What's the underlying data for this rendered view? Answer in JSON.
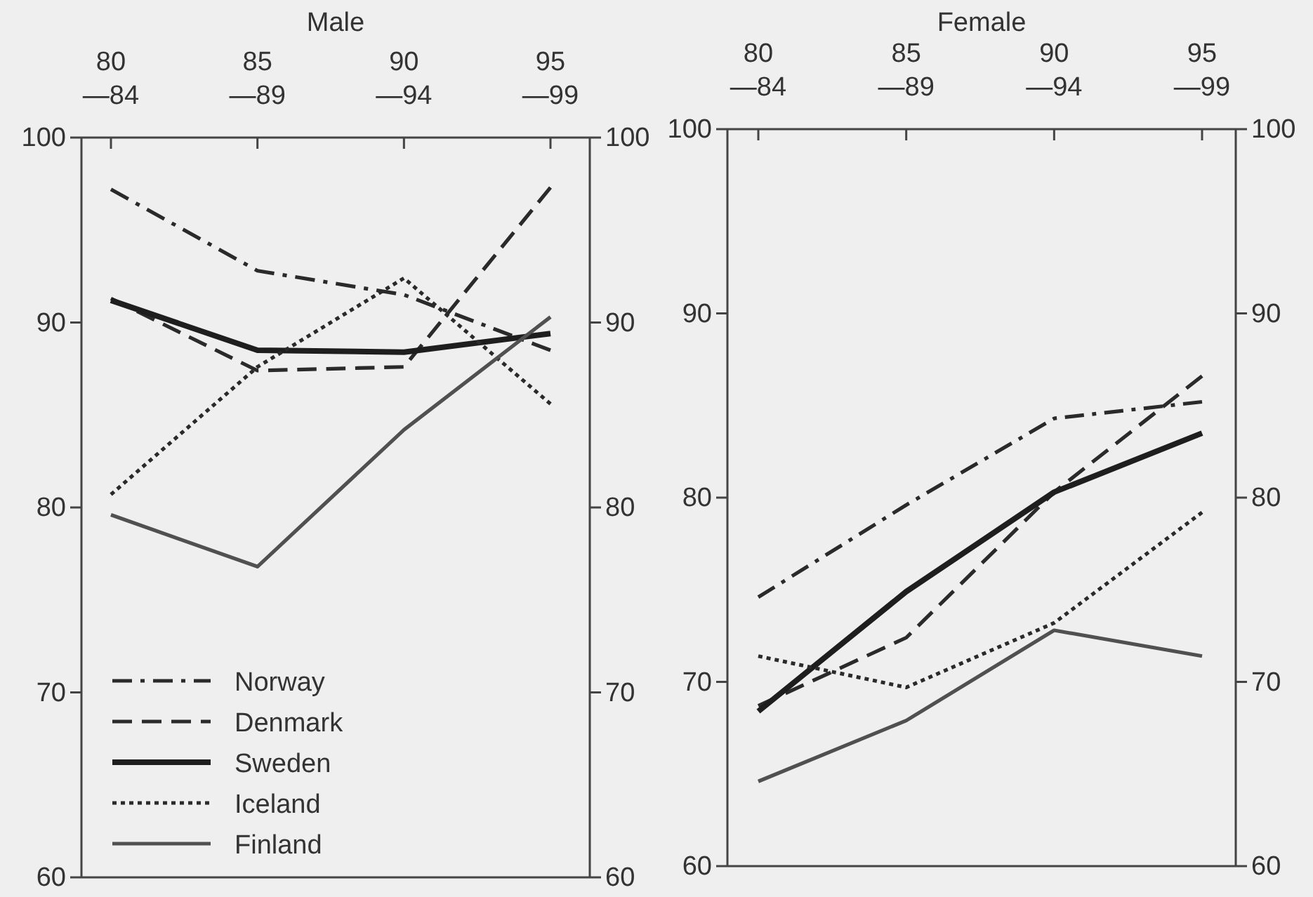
{
  "chart_data": [
    {
      "type": "line",
      "title": "Male",
      "categories": [
        "80 —84",
        "85 —89",
        "90 —94",
        "95 —99"
      ],
      "ylim": [
        60,
        100
      ],
      "yticks": [
        60,
        70,
        80,
        90,
        100
      ],
      "y2lim": [
        60,
        100
      ],
      "y2ticks": [
        60,
        70,
        80,
        90,
        100
      ],
      "legend": "bottom left",
      "series": [
        {
          "name": "Norway",
          "color": "#2a2a2a",
          "line_style": "dashdot",
          "values": [
            97.2,
            92.8,
            91.5,
            88.5
          ]
        },
        {
          "name": "Denmark",
          "color": "#2a2a2a",
          "line_style": "dashed",
          "values": [
            91.3,
            87.4,
            87.6,
            97.3
          ]
        },
        {
          "name": "Sweden",
          "color": "#1e1e1e",
          "line_style": "solid",
          "values": [
            91.2,
            88.5,
            88.4,
            89.4
          ]
        },
        {
          "name": "Iceland",
          "color": "#2a2a2a",
          "line_style": "dotted",
          "values": [
            80.7,
            87.6,
            92.4,
            85.6
          ]
        },
        {
          "name": "Finland",
          "color": "#505050",
          "line_style": "solid",
          "values": [
            79.6,
            76.8,
            84.2,
            90.3
          ]
        }
      ]
    },
    {
      "type": "line",
      "title": "Female",
      "categories": [
        "80 —84",
        "85 —89",
        "90 —94",
        "95 —99"
      ],
      "ylim": [
        60,
        100
      ],
      "yticks": [
        60,
        70,
        80,
        90,
        100
      ],
      "y2lim": [
        60,
        100
      ],
      "y2ticks": [
        60,
        70,
        80,
        90,
        100
      ],
      "series": [
        {
          "color": "#2a2a2a",
          "line_style": "dashdot",
          "values": [
            74.6,
            79.6,
            84.3,
            85.2
          ]
        },
        {
          "color": "#2a2a2a",
          "line_style": "dashed",
          "values": [
            68.7,
            72.4,
            80.3,
            86.6
          ]
        },
        {
          "color": "#1e1e1e",
          "line_style": "solid",
          "values": [
            68.4,
            74.9,
            80.3,
            83.5
          ]
        },
        {
          "color": "#2a2a2a",
          "line_style": "dotted",
          "values": [
            71.4,
            69.7,
            73.2,
            79.2
          ]
        },
        {
          "color": "#505050",
          "line_style": "solid",
          "values": [
            64.6,
            67.9,
            72.8,
            71.4
          ]
        }
      ]
    }
  ]
}
